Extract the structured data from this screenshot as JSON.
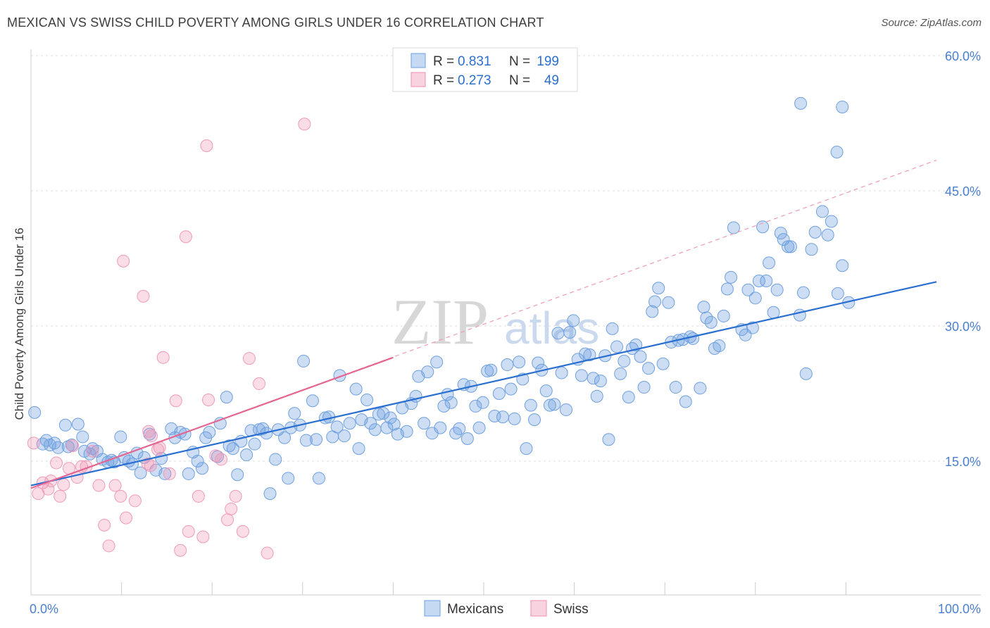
{
  "title": "MEXICAN VS SWISS CHILD POVERTY AMONG GIRLS UNDER 16 CORRELATION CHART",
  "source": "Source: ZipAtlas.com",
  "watermark": {
    "zip": "ZIP",
    "atlas": "atlas"
  },
  "legend_top": {
    "rows": [
      {
        "r_label": "R =",
        "r_value": "0.831",
        "n_label": "N =",
        "n_value": "199",
        "color": "#6fa0e0"
      },
      {
        "r_label": "R =",
        "r_value": "0.273",
        "n_label": "N =",
        "n_value": "49",
        "color": "#f08eb0"
      }
    ]
  },
  "legend_bottom": [
    {
      "label": "Mexicans",
      "color": "#6fa0e0"
    },
    {
      "label": "Swiss",
      "color": "#f08eb0"
    }
  ],
  "chart_data": {
    "type": "scatter",
    "title": "MEXICAN VS SWISS CHILD POVERTY AMONG GIRLS UNDER 16 CORRELATION CHART",
    "xlabel": "",
    "ylabel": "Child Poverty Among Girls Under 16",
    "xlim": [
      0,
      100
    ],
    "ylim": [
      0,
      63
    ],
    "x_tick_labels": [
      "0.0%",
      "100.0%"
    ],
    "y_ticks": [
      15,
      30,
      45,
      60
    ],
    "y_tick_labels": [
      "15.0%",
      "30.0%",
      "45.0%",
      "60.0%"
    ],
    "grid": true,
    "legend_position": "top-center",
    "series": [
      {
        "name": "Mexicans",
        "color": "#6fa0e0",
        "r": 0.831,
        "n": 199,
        "trend": {
          "x": [
            0,
            100
          ],
          "y": [
            12.3,
            34.9
          ]
        },
        "points": [
          [
            0.4,
            20.4
          ],
          [
            1.3,
            16.9
          ],
          [
            1.7,
            17.3
          ],
          [
            2.1,
            16.8
          ],
          [
            2.6,
            17.0
          ],
          [
            3.0,
            16.5
          ],
          [
            3.8,
            19.0
          ],
          [
            4.1,
            16.6
          ],
          [
            4.5,
            16.8
          ],
          [
            5.2,
            19.1
          ],
          [
            5.7,
            17.7
          ],
          [
            5.9,
            16.1
          ],
          [
            6.5,
            15.8
          ],
          [
            6.8,
            16.4
          ],
          [
            7.3,
            16.1
          ],
          [
            7.9,
            15.2
          ],
          [
            8.5,
            14.9
          ],
          [
            8.9,
            15.1
          ],
          [
            9.2,
            14.9
          ],
          [
            9.9,
            17.7
          ],
          [
            10.3,
            15.4
          ],
          [
            10.8,
            15.0
          ],
          [
            11.2,
            14.7
          ],
          [
            11.7,
            15.9
          ],
          [
            12.1,
            13.7
          ],
          [
            12.5,
            15.4
          ],
          [
            13.1,
            18.0
          ],
          [
            13.8,
            14.0
          ],
          [
            14.4,
            15.3
          ],
          [
            14.8,
            13.6
          ],
          [
            15.5,
            18.6
          ],
          [
            15.9,
            17.6
          ],
          [
            16.5,
            18.2
          ],
          [
            17.0,
            18.0
          ],
          [
            17.4,
            13.6
          ],
          [
            17.9,
            16.0
          ],
          [
            18.4,
            15.0
          ],
          [
            18.9,
            14.2
          ],
          [
            19.3,
            17.6
          ],
          [
            19.7,
            18.2
          ],
          [
            20.6,
            15.5
          ],
          [
            20.9,
            19.2
          ],
          [
            21.6,
            22.1
          ],
          [
            21.9,
            16.7
          ],
          [
            22.3,
            16.4
          ],
          [
            22.8,
            13.5
          ],
          [
            23.2,
            17.2
          ],
          [
            23.8,
            15.7
          ],
          [
            24.3,
            18.4
          ],
          [
            24.7,
            16.9
          ],
          [
            25.2,
            18.5
          ],
          [
            25.6,
            18.6
          ],
          [
            26.0,
            18.1
          ],
          [
            26.4,
            11.4
          ],
          [
            27.0,
            15.2
          ],
          [
            27.3,
            18.5
          ],
          [
            28.0,
            17.6
          ],
          [
            28.4,
            13.1
          ],
          [
            28.7,
            18.7
          ],
          [
            29.1,
            20.3
          ],
          [
            29.7,
            19.0
          ],
          [
            30.1,
            26.1
          ],
          [
            30.4,
            17.3
          ],
          [
            31.1,
            21.7
          ],
          [
            31.5,
            17.4
          ],
          [
            31.8,
            13.1
          ],
          [
            32.5,
            19.8
          ],
          [
            32.9,
            19.9
          ],
          [
            33.3,
            17.7
          ],
          [
            33.8,
            18.8
          ],
          [
            34.1,
            24.5
          ],
          [
            34.6,
            17.8
          ],
          [
            35.2,
            19.2
          ],
          [
            35.9,
            23.0
          ],
          [
            36.2,
            16.4
          ],
          [
            36.5,
            19.6
          ],
          [
            37.1,
            21.8
          ],
          [
            37.5,
            19.2
          ],
          [
            38.0,
            18.5
          ],
          [
            38.4,
            20.2
          ],
          [
            38.9,
            20.3
          ],
          [
            39.3,
            18.7
          ],
          [
            39.7,
            19.8
          ],
          [
            40.1,
            19.1
          ],
          [
            40.5,
            18.0
          ],
          [
            41.0,
            20.9
          ],
          [
            41.5,
            18.3
          ],
          [
            42.0,
            21.4
          ],
          [
            42.5,
            22.2
          ],
          [
            42.8,
            24.4
          ],
          [
            43.4,
            19.2
          ],
          [
            43.8,
            24.9
          ],
          [
            44.3,
            18.1
          ],
          [
            44.8,
            26.0
          ],
          [
            45.2,
            18.7
          ],
          [
            45.6,
            21.1
          ],
          [
            46.0,
            22.4
          ],
          [
            46.4,
            21.5
          ],
          [
            46.9,
            18.1
          ],
          [
            47.3,
            18.6
          ],
          [
            47.8,
            23.5
          ],
          [
            48.2,
            17.5
          ],
          [
            48.6,
            23.3
          ],
          [
            49.1,
            21.1
          ],
          [
            49.5,
            18.7
          ],
          [
            49.9,
            21.5
          ],
          [
            50.4,
            25.0
          ],
          [
            50.8,
            25.1
          ],
          [
            51.2,
            20.0
          ],
          [
            51.7,
            22.5
          ],
          [
            52.1,
            19.9
          ],
          [
            52.6,
            25.7
          ],
          [
            53.0,
            23.0
          ],
          [
            53.4,
            19.7
          ],
          [
            53.9,
            26.0
          ],
          [
            54.3,
            24.1
          ],
          [
            54.7,
            16.4
          ],
          [
            55.2,
            21.2
          ],
          [
            55.6,
            19.6
          ],
          [
            56.0,
            25.9
          ],
          [
            56.4,
            25.1
          ],
          [
            56.9,
            22.8
          ],
          [
            57.3,
            21.2
          ],
          [
            57.8,
            21.3
          ],
          [
            58.2,
            29.2
          ],
          [
            58.6,
            24.8
          ],
          [
            59.1,
            20.7
          ],
          [
            59.5,
            29.3
          ],
          [
            59.9,
            30.6
          ],
          [
            60.4,
            26.3
          ],
          [
            60.8,
            24.5
          ],
          [
            61.2,
            26.9
          ],
          [
            61.7,
            26.8
          ],
          [
            62.1,
            24.2
          ],
          [
            62.5,
            22.2
          ],
          [
            62.9,
            23.9
          ],
          [
            63.4,
            26.7
          ],
          [
            63.8,
            17.4
          ],
          [
            64.2,
            29.7
          ],
          [
            64.7,
            27.7
          ],
          [
            65.1,
            24.7
          ],
          [
            65.5,
            26.1
          ],
          [
            66.0,
            22.1
          ],
          [
            66.4,
            27.5
          ],
          [
            66.8,
            27.9
          ],
          [
            67.3,
            26.6
          ],
          [
            67.7,
            23.2
          ],
          [
            68.2,
            25.3
          ],
          [
            68.6,
            31.6
          ],
          [
            68.9,
            32.7
          ],
          [
            69.3,
            34.2
          ],
          [
            69.8,
            25.8
          ],
          [
            70.4,
            32.6
          ],
          [
            70.7,
            28.2
          ],
          [
            71.2,
            23.2
          ],
          [
            71.5,
            28.4
          ],
          [
            72.0,
            28.5
          ],
          [
            72.3,
            21.6
          ],
          [
            72.8,
            28.8
          ],
          [
            73.1,
            28.6
          ],
          [
            73.9,
            23.1
          ],
          [
            74.3,
            32.1
          ],
          [
            74.6,
            30.9
          ],
          [
            75.1,
            30.4
          ],
          [
            75.5,
            27.5
          ],
          [
            76.0,
            27.8
          ],
          [
            76.5,
            31.1
          ],
          [
            76.9,
            34.1
          ],
          [
            77.3,
            35.4
          ],
          [
            77.6,
            40.9
          ],
          [
            78.5,
            29.6
          ],
          [
            78.9,
            29.0
          ],
          [
            79.2,
            34.0
          ],
          [
            79.7,
            29.8
          ],
          [
            80.0,
            33.1
          ],
          [
            80.4,
            35.0
          ],
          [
            80.8,
            41.0
          ],
          [
            81.2,
            35.0
          ],
          [
            81.5,
            37.0
          ],
          [
            82.0,
            31.5
          ],
          [
            82.4,
            34.0
          ],
          [
            82.8,
            40.3
          ],
          [
            83.1,
            39.6
          ],
          [
            83.6,
            38.8
          ],
          [
            83.9,
            38.8
          ],
          [
            84.9,
            31.2
          ],
          [
            85.3,
            33.7
          ],
          [
            85.6,
            24.7
          ],
          [
            86.2,
            38.5
          ],
          [
            86.6,
            40.4
          ],
          [
            87.4,
            42.7
          ],
          [
            88.0,
            40.1
          ],
          [
            88.4,
            41.6
          ],
          [
            89.1,
            33.6
          ],
          [
            89.6,
            36.7
          ],
          [
            90.3,
            32.6
          ],
          [
            85.0,
            54.7
          ],
          [
            89.0,
            49.3
          ],
          [
            89.6,
            54.3
          ]
        ]
      },
      {
        "name": "Swiss",
        "color": "#f08eb0",
        "r": 0.273,
        "n": 49,
        "trend": {
          "x": [
            0,
            40
          ],
          "y": [
            12.0,
            26.5
          ]
        },
        "trend_extended": {
          "x": [
            0,
            100
          ],
          "y": [
            12.0,
            48.4
          ]
        },
        "points": [
          [
            0.3,
            17.0
          ],
          [
            0.8,
            11.4
          ],
          [
            1.3,
            12.6
          ],
          [
            1.9,
            11.9
          ],
          [
            2.2,
            12.8
          ],
          [
            2.8,
            14.8
          ],
          [
            3.2,
            11.1
          ],
          [
            3.6,
            12.4
          ],
          [
            4.2,
            14.2
          ],
          [
            4.6,
            16.7
          ],
          [
            5.1,
            13.2
          ],
          [
            5.6,
            14.4
          ],
          [
            6.1,
            14.4
          ],
          [
            6.8,
            16.1
          ],
          [
            7.5,
            12.3
          ],
          [
            8.1,
            7.9
          ],
          [
            8.6,
            5.6
          ],
          [
            9.3,
            12.3
          ],
          [
            9.9,
            11.1
          ],
          [
            10.2,
            37.2
          ],
          [
            10.5,
            8.7
          ],
          [
            11.5,
            10.6
          ],
          [
            12.4,
            33.3
          ],
          [
            13.0,
            18.3
          ],
          [
            13.3,
            17.8
          ],
          [
            14.2,
            16.5
          ],
          [
            14.6,
            26.5
          ],
          [
            15.3,
            13.6
          ],
          [
            16.0,
            21.7
          ],
          [
            16.5,
            5.1
          ],
          [
            17.1,
            39.9
          ],
          [
            17.4,
            7.2
          ],
          [
            18.5,
            11.1
          ],
          [
            19.0,
            6.6
          ],
          [
            19.4,
            50.0
          ],
          [
            19.6,
            21.8
          ],
          [
            20.4,
            15.6
          ],
          [
            21.0,
            15.2
          ],
          [
            21.7,
            8.5
          ],
          [
            22.1,
            9.7
          ],
          [
            22.6,
            11.1
          ],
          [
            23.4,
            7.2
          ],
          [
            24.1,
            26.4
          ],
          [
            25.2,
            23.6
          ],
          [
            26.1,
            4.8
          ],
          [
            30.2,
            52.4
          ],
          [
            13.2,
            14.5
          ],
          [
            14.0,
            16.3
          ],
          [
            12.9,
            14.7
          ]
        ]
      }
    ]
  }
}
